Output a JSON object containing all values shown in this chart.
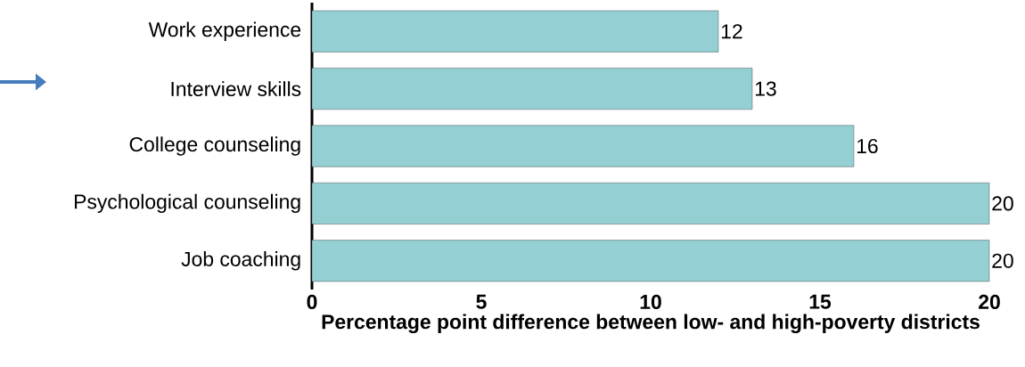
{
  "chart_data": {
    "type": "bar",
    "orientation": "horizontal",
    "xlabel": "Percentage point difference between low- and high-poverty districts",
    "categories": [
      "Work experience",
      "Interview skills",
      "College  counseling",
      "Psychological counseling",
      "Job coaching"
    ],
    "values": [
      12,
      13,
      16,
      20,
      20
    ],
    "color": "#93cfd3",
    "xlim": [
      0,
      20
    ],
    "xticks": [
      0,
      5,
      10,
      15,
      20
    ],
    "data_labels": true,
    "grid": false
  }
}
